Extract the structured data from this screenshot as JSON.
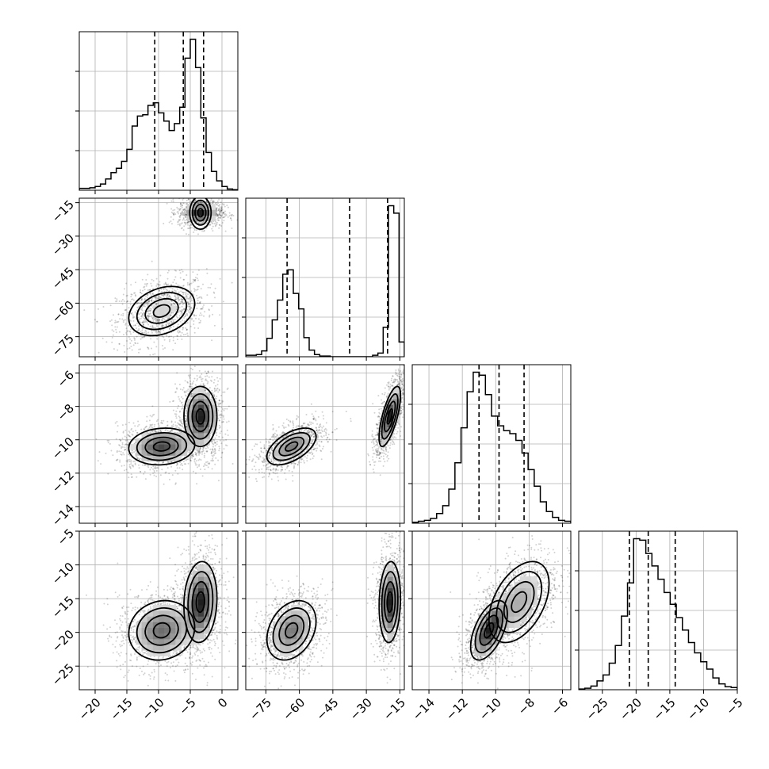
{
  "chart_data": {
    "type": "corner",
    "grid": true,
    "parameters": [
      {
        "id": "p0",
        "range": [
          -22.5,
          2.5
        ],
        "ticks": [
          -20,
          -15,
          -10,
          -5,
          0
        ],
        "tick_labels": [
          "−20",
          "−15",
          "−10",
          "−5",
          "0"
        ],
        "quantiles": [
          -10.6,
          -6.1,
          -2.9
        ],
        "modes": [
          {
            "mean": -9.5,
            "sd": 2.6,
            "w": 0.5
          },
          {
            "mean": -3.4,
            "sd": 1.3,
            "w": 0.5
          }
        ],
        "hist_bins": [
          0.3,
          0.3,
          0.4,
          0.6,
          1.0,
          1.8,
          2.8,
          3.5,
          4.6,
          6.5,
          10.2,
          11.8,
          12.0,
          13.5,
          13.9,
          12.3,
          11.0,
          9.5,
          10.6,
          13.2,
          21.0,
          24.0,
          19.5,
          11.5,
          6.0,
          3.0,
          1.5,
          0.6,
          0.2,
          0.1
        ]
      },
      {
        "id": "p1",
        "range": [
          -84,
          -13
        ],
        "ticks": [
          -75,
          -60,
          -45,
          -30,
          -15
        ],
        "tick_labels": [
          "−75",
          "−60",
          "−45",
          "−30",
          "−15"
        ],
        "quantiles": [
          -65.5,
          -37.5,
          -20.5
        ],
        "modes": [
          {
            "mean": -63.5,
            "sd": 5.5,
            "w": 0.5
          },
          {
            "mean": -19.5,
            "sd": 2.4,
            "w": 0.5
          }
        ],
        "hist_bins": [
          0.2,
          0.2,
          0.3,
          0.8,
          2.5,
          5.0,
          7.7,
          11.2,
          11.8,
          8.6,
          6.5,
          2.6,
          0.9,
          0.3,
          0.1,
          0.1,
          0,
          0,
          0,
          0,
          0,
          0,
          0,
          0,
          0.2,
          0.5,
          4.0,
          20.5,
          19.5,
          2.0
        ]
      },
      {
        "id": "p2",
        "range": [
          -15,
          -5.5
        ],
        "ticks": [
          -14,
          -12,
          -10,
          -8,
          -6
        ],
        "tick_labels": [
          "−14",
          "−12",
          "−10",
          "−8",
          "−6"
        ],
        "quantiles": [
          -11.0,
          -9.8,
          -8.3
        ],
        "modes": [
          {
            "mean": -10.4,
            "sd": 0.55,
            "w": 0.5
          },
          {
            "mean": -8.6,
            "sd": 0.9,
            "w": 0.5
          }
        ],
        "hist_bins": [
          0.1,
          0.2,
          0.3,
          0.5,
          1.0,
          1.8,
          3.5,
          6.2,
          9.8,
          13.5,
          15.5,
          15.2,
          13.2,
          11.0,
          10.0,
          9.5,
          9.2,
          8.5,
          7.2,
          5.5,
          3.8,
          2.2,
          1.2,
          0.6,
          0.3,
          0.2
        ]
      },
      {
        "id": "p3",
        "range": [
          -28.5,
          -5
        ],
        "ticks": [
          -25,
          -20,
          -15,
          -10,
          -5
        ],
        "tick_labels": [
          "−25",
          "−20",
          "−15",
          "−10",
          "−5"
        ],
        "quantiles": [
          -21.0,
          -18.2,
          -14.2
        ],
        "modes": [
          {
            "mean": -19.7,
            "sd": 2.2,
            "w": 0.5
          },
          {
            "mean": -15.5,
            "sd": 3.0,
            "w": 0.5
          }
        ],
        "hist_bins": [
          0.1,
          0.2,
          0.5,
          1.2,
          2.0,
          3.6,
          6.0,
          10.0,
          14.5,
          20.5,
          20.3,
          18.5,
          16.8,
          15.0,
          13.2,
          11.6,
          9.8,
          8.1,
          6.4,
          5.0,
          3.8,
          2.8,
          1.6,
          0.8,
          0.4,
          0.3
        ]
      }
    ],
    "y_labels_col0": [
      {
        "row": 1,
        "ticks": [
          -75,
          -60,
          -45,
          -30,
          -15
        ],
        "tick_labels": [
          "−75",
          "−60",
          "−45",
          "−30",
          "−15"
        ]
      },
      {
        "row": 2,
        "ticks": [
          -14,
          -12,
          -10,
          -8,
          -6
        ],
        "tick_labels": [
          "−14",
          "−12",
          "−10",
          "−8",
          "−6"
        ]
      },
      {
        "row": 3,
        "ticks": [
          -25,
          -20,
          -15,
          -10,
          -5
        ],
        "tick_labels": [
          "−25",
          "−20",
          "−15",
          "−10",
          "−5"
        ]
      }
    ],
    "pairs": [
      {
        "row": 1,
        "col": 0,
        "modes": [
          {
            "mx": -9.5,
            "my": -63.5,
            "sx": 2.6,
            "sy": 5.5,
            "rho": 0.3,
            "w": 0.5
          },
          {
            "mx": -3.4,
            "my": -19.5,
            "sx": 1.3,
            "sy": 2.4,
            "rho": 0.0,
            "w": 0.5
          }
        ]
      },
      {
        "row": 2,
        "col": 0,
        "modes": [
          {
            "mx": -9.5,
            "my": -10.4,
            "sx": 2.6,
            "sy": 0.55,
            "rho": 0.1,
            "w": 0.5
          },
          {
            "mx": -3.4,
            "my": -8.6,
            "sx": 1.3,
            "sy": 0.9,
            "rho": 0.0,
            "w": 0.5
          }
        ]
      },
      {
        "row": 2,
        "col": 1,
        "modes": [
          {
            "mx": -63.5,
            "my": -10.4,
            "sx": 5.5,
            "sy": 0.55,
            "rho": 0.55,
            "w": 0.5
          },
          {
            "mx": -19.5,
            "my": -8.6,
            "sx": 2.4,
            "sy": 0.9,
            "rho": 0.7,
            "w": 0.5
          }
        ]
      },
      {
        "row": 3,
        "col": 0,
        "modes": [
          {
            "mx": -9.5,
            "my": -19.7,
            "sx": 2.6,
            "sy": 2.2,
            "rho": 0.1,
            "w": 0.5
          },
          {
            "mx": -3.4,
            "my": -15.5,
            "sx": 1.3,
            "sy": 3.0,
            "rho": 0.1,
            "w": 0.5
          }
        ]
      },
      {
        "row": 3,
        "col": 1,
        "modes": [
          {
            "mx": -63.5,
            "my": -19.7,
            "sx": 5.5,
            "sy": 2.2,
            "rho": 0.3,
            "w": 0.5
          },
          {
            "mx": -19.5,
            "my": -15.5,
            "sx": 2.4,
            "sy": 3.0,
            "rho": 0.1,
            "w": 0.5
          }
        ]
      },
      {
        "row": 3,
        "col": 2,
        "modes": [
          {
            "mx": -10.4,
            "my": -19.7,
            "sx": 0.55,
            "sy": 2.2,
            "rho": 0.55,
            "w": 0.5
          },
          {
            "mx": -8.6,
            "my": -15.5,
            "sx": 0.9,
            "sy": 3.0,
            "rho": 0.45,
            "w": 0.5
          }
        ]
      }
    ]
  }
}
